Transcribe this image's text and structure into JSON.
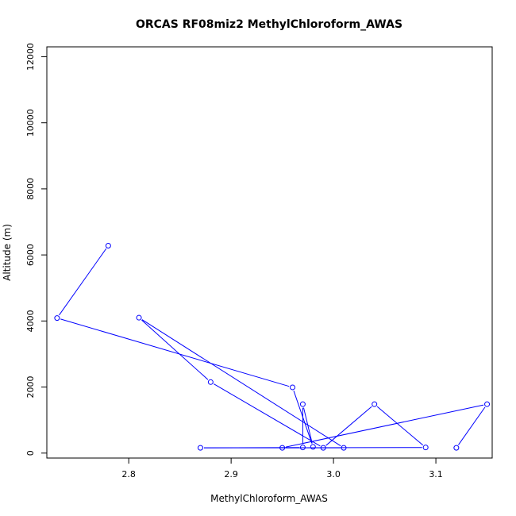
{
  "chart_data": {
    "type": "line",
    "title": "ORCAS RF08miz2 MethylChloroform_AWAS",
    "xlabel": "MethylChloroform_AWAS",
    "ylabel": "Altitude (m)",
    "xlim": [
      2.72,
      3.155
    ],
    "ylim": [
      -150,
      12300
    ],
    "x_ticks": [
      2.8,
      2.9,
      3.0,
      3.1
    ],
    "x_tick_labels": [
      "2.8",
      "2.9",
      "3.0",
      "3.1"
    ],
    "y_ticks": [
      0,
      2000,
      4000,
      6000,
      8000,
      10000,
      12000
    ],
    "y_tick_labels": [
      "0",
      "2000",
      "4000",
      "6000",
      "8000",
      "10000",
      "12000"
    ],
    "grid": false,
    "legend": "none",
    "colors": {
      "series": "#0000ff",
      "axis": "#000000"
    },
    "series": [
      {
        "x": [
          2.78,
          2.73,
          2.96,
          2.98,
          2.97,
          2.97,
          2.87,
          3.01,
          2.81,
          2.88,
          2.99,
          3.04,
          3.09,
          2.95,
          3.15,
          3.12
        ],
        "y": [
          6280,
          4090,
          1990,
          190,
          1480,
          170,
          160,
          160,
          4100,
          2150,
          160,
          1480,
          170,
          160,
          1480,
          160
        ]
      }
    ]
  }
}
